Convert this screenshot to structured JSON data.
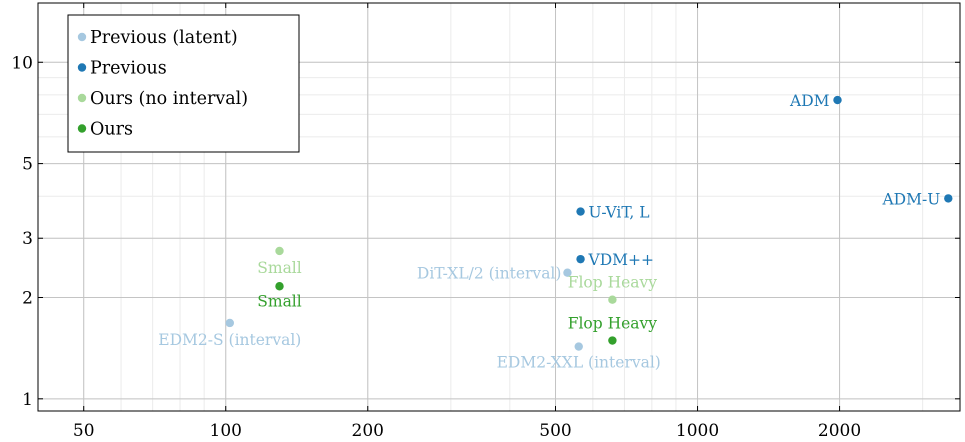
{
  "chart_data": {
    "type": "scatter",
    "xscale": "log",
    "yscale": "log",
    "xlim": [
      40,
      3600
    ],
    "ylim": [
      0.92,
      15
    ],
    "grid": true,
    "legend_position": "top-left",
    "x_ticks": [
      50,
      100,
      200,
      500,
      1000,
      2000
    ],
    "x_tick_labels": [
      "50",
      "100",
      "200",
      "500",
      "1000",
      "2000"
    ],
    "y_ticks": [
      1,
      2,
      3,
      5,
      10
    ],
    "y_tick_labels": [
      "1",
      "2",
      "3",
      "5",
      "10"
    ],
    "series": [
      {
        "name": "Previous (latent)",
        "color": "#a6c8e0",
        "points": [
          {
            "x": 102,
            "y": 1.68,
            "label": "EDM2-S (interval)",
            "anchor": "middle",
            "dx": 0,
            "dy": 22
          },
          {
            "x": 530,
            "y": 2.37,
            "label": "DiT-XL/2 (interval)",
            "anchor": "end",
            "dx": -6,
            "dy": 6
          },
          {
            "x": 560,
            "y": 1.43,
            "label": "EDM2-XXL (interval)",
            "anchor": "middle",
            "dx": 0,
            "dy": 21
          }
        ]
      },
      {
        "name": "Previous",
        "color": "#1f78b4",
        "points": [
          {
            "x": 1980,
            "y": 7.72,
            "label": "ADM",
            "anchor": "end",
            "dx": -8,
            "dy": 6
          },
          {
            "x": 3400,
            "y": 3.94,
            "label": "ADM-U",
            "anchor": "end",
            "dx": -8,
            "dy": 6
          },
          {
            "x": 565,
            "y": 3.6,
            "label": "U-ViT, L",
            "anchor": "start",
            "dx": 8,
            "dy": 6
          },
          {
            "x": 565,
            "y": 2.6,
            "label": "VDM++",
            "anchor": "start",
            "dx": 8,
            "dy": 6
          }
        ]
      },
      {
        "name": "Ours (no interval)",
        "color": "#a9d99b",
        "points": [
          {
            "x": 130,
            "y": 2.75,
            "label": "Small",
            "anchor": "middle",
            "dx": 0,
            "dy": 22
          },
          {
            "x": 660,
            "y": 1.97,
            "label": "Flop Heavy",
            "anchor": "middle",
            "dx": 0,
            "dy": -12
          }
        ]
      },
      {
        "name": "Ours",
        "color": "#33a02c",
        "points": [
          {
            "x": 130,
            "y": 2.16,
            "label": "Small",
            "anchor": "middle",
            "dx": 0,
            "dy": 20
          },
          {
            "x": 660,
            "y": 1.49,
            "label": "Flop Heavy",
            "anchor": "middle",
            "dx": 0,
            "dy": -12
          }
        ]
      }
    ]
  }
}
